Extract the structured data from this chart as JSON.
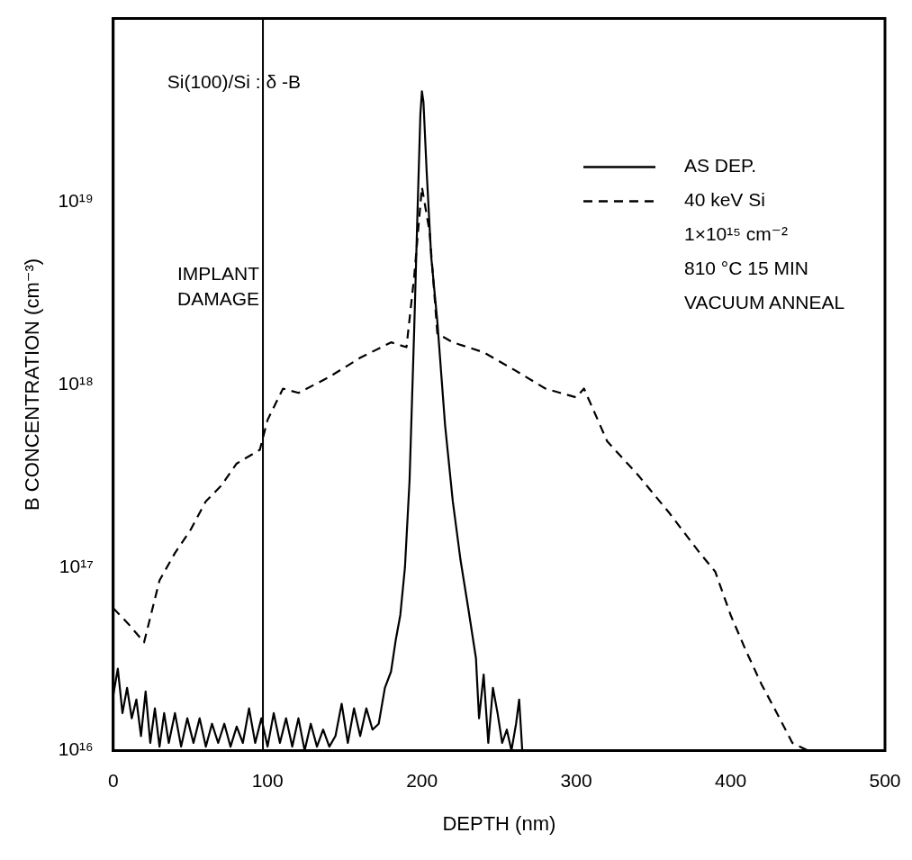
{
  "chart_data": {
    "type": "line",
    "xlabel": "DEPTH (nm)",
    "ylabel": "B CONCENTRATION (cm⁻³)",
    "xlim": [
      0,
      500
    ],
    "xticks": [
      0,
      100,
      200,
      300,
      400,
      500
    ],
    "ylim": [
      1e+16,
      1e+20
    ],
    "yticks": [
      {
        "value": 1e+16,
        "label": "10¹⁶"
      },
      {
        "value": 1e+17,
        "label": "10¹⁷"
      },
      {
        "value": 1e+18,
        "label": "10¹⁸"
      },
      {
        "value": 1e+19,
        "label": "10¹⁹"
      }
    ],
    "log": "y",
    "grid": false,
    "legend": "top right",
    "marker": "none",
    "annotations": [
      "Si(100)/Si : δ -B",
      "1×10¹⁵ cm⁻²",
      "810 °C 15 MIN",
      "VACUUM ANNEAL"
    ],
    "ref_lines": [
      {
        "axis": "x",
        "value": 97,
        "label": "IMPLANT DAMAGE",
        "color": "#000000"
      }
    ],
    "series": [
      {
        "name": "AS DEP.",
        "color": "#000000",
        "line_style": "solid",
        "x": [
          0,
          3,
          6,
          9,
          12,
          15,
          18,
          21,
          24,
          27,
          30,
          33,
          36,
          40,
          44,
          48,
          52,
          56,
          60,
          64,
          68,
          72,
          76,
          80,
          84,
          88,
          92,
          96,
          100,
          104,
          108,
          112,
          116,
          120,
          124,
          128,
          132,
          136,
          140,
          144,
          148,
          152,
          156,
          160,
          164,
          168,
          172,
          176,
          180,
          183,
          186,
          189,
          192,
          195,
          197,
          199,
          200,
          201,
          203,
          206,
          210,
          215,
          220,
          225,
          230,
          235,
          237,
          240,
          243,
          246,
          249,
          252,
          255,
          258,
          261,
          263,
          265
        ],
        "values": [
          2e+16,
          2.8e+16,
          1.6e+16,
          2.2e+16,
          1.5e+16,
          1.9e+16,
          1.2e+16,
          2.1e+16,
          1.1e+16,
          1.7e+16,
          1.05e+16,
          1.6e+16,
          1.1e+16,
          1.6e+16,
          1.05e+16,
          1.5e+16,
          1.1e+16,
          1.5e+16,
          1.05e+16,
          1.4e+16,
          1.1e+16,
          1.4e+16,
          1.05e+16,
          1.35e+16,
          1.1e+16,
          1.7e+16,
          1.1e+16,
          1.5e+16,
          1.05e+16,
          1.6e+16,
          1.1e+16,
          1.5e+16,
          1.05e+16,
          1.5e+16,
          1e+16,
          1.4e+16,
          1.05e+16,
          1.3e+16,
          1.05e+16,
          1.2e+16,
          1.8e+16,
          1.1e+16,
          1.7e+16,
          1.2e+16,
          1.7e+16,
          1.3e+16,
          1.4e+16,
          2.2e+16,
          2.7e+16,
          4e+16,
          5.5e+16,
          1e+17,
          3e+17,
          2e+18,
          8e+18,
          3e+19,
          4e+19,
          3.5e+19,
          1.5e+19,
          5e+18,
          2.2e+18,
          6e+17,
          2.3e+17,
          1.1e+17,
          6e+16,
          3.2e+16,
          1.5e+16,
          2.6e+16,
          1.1e+16,
          2.2e+16,
          1.6e+16,
          1.1e+16,
          1.3e+16,
          1e+16,
          1.4e+16,
          1.9e+16,
          1e+16
        ]
      },
      {
        "name": "40 keV Si",
        "color": "#000000",
        "line_style": "dashed",
        "x": [
          0,
          10,
          20,
          30,
          40,
          50,
          60,
          70,
          80,
          95,
          100,
          110,
          120,
          140,
          160,
          180,
          190,
          195,
          200,
          205,
          210,
          220,
          240,
          260,
          280,
          300,
          305,
          320,
          340,
          360,
          380,
          390,
          400,
          410,
          420,
          430,
          440,
          450
        ],
        "values": [
          6e+16,
          4.9e+16,
          3.9e+16,
          8.5e+16,
          1.2e+17,
          1.6e+17,
          2.3e+17,
          2.8e+17,
          3.7e+17,
          4.4e+17,
          6.4e+17,
          9.5e+17,
          9e+17,
          1.1e+18,
          1.4e+18,
          1.7e+18,
          1.6e+18,
          3.9e+18,
          1.2e+19,
          6.8e+18,
          1.9e+18,
          1.7e+18,
          1.5e+18,
          1.2e+18,
          9.5e+17,
          8.5e+17,
          9.5e+17,
          4.9e+17,
          3.2e+17,
          2e+17,
          1.2e+17,
          9.5e+16,
          5.5e+16,
          3.5e+16,
          2.3e+16,
          1.6e+16,
          1.1e+16,
          1e+16
        ]
      }
    ]
  }
}
